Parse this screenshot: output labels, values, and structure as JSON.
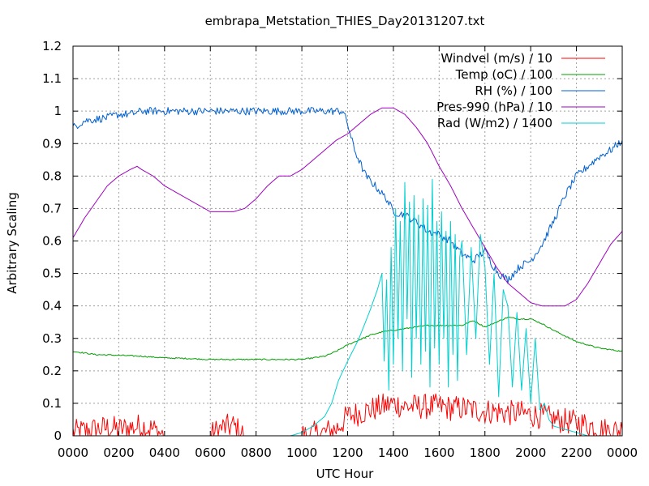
{
  "chart_data": {
    "type": "line",
    "title": "embrapa_Metstation_THIES_Day20131207.txt",
    "xlabel": "UTC Hour",
    "ylabel": "Arbitrary Scaling",
    "xlim": [
      0,
      24
    ],
    "ylim": [
      0,
      1.2
    ],
    "x_tick_values": [
      0,
      2,
      4,
      6,
      8,
      10,
      12,
      14,
      16,
      18,
      20,
      22,
      24
    ],
    "x_tick_labels": [
      "0000",
      "0200",
      "0400",
      "0600",
      "0800",
      "1000",
      "1200",
      "1400",
      "1600",
      "1800",
      "2000",
      "2200",
      "0000"
    ],
    "y_tick_values": [
      0,
      0.1,
      0.2,
      0.3,
      0.4,
      0.5,
      0.6,
      0.7,
      0.8,
      0.9,
      1.0,
      1.1,
      1.2
    ],
    "y_tick_labels": [
      "0",
      "0.1",
      "0.2",
      "0.3",
      "0.4",
      "0.5",
      "0.6",
      "0.7",
      "0.8",
      "0.9",
      "1",
      "1.1",
      "1.2"
    ],
    "grid": true,
    "legend_position": "top-right",
    "series": [
      {
        "name": "Windvel (m/s) / 10",
        "color": "#ff0000",
        "noise": 0.04,
        "x": [
          0,
          0.5,
          1,
          1.5,
          2,
          2.5,
          3,
          3.5,
          4,
          6,
          6.5,
          7,
          7.5,
          10,
          11,
          11.5,
          12,
          12.5,
          13,
          13.5,
          14,
          14.5,
          15,
          15.5,
          16,
          16.5,
          17,
          17.5,
          18,
          18.5,
          19,
          19.5,
          20,
          20.5,
          21,
          21.5,
          22,
          22.5,
          23,
          23.5,
          24
        ],
        "y": [
          0.01,
          0.015,
          0.02,
          0.025,
          0.02,
          0.025,
          0.03,
          0.02,
          0,
          0,
          0.025,
          0.03,
          0,
          0,
          0.01,
          0.02,
          0.06,
          0.07,
          0.08,
          0.09,
          0.1,
          0.09,
          0.09,
          0.09,
          0.09,
          0.085,
          0.085,
          0.08,
          0.075,
          0.075,
          0.07,
          0.07,
          0.065,
          0.06,
          0.05,
          0.045,
          0.04,
          0.035,
          0.02,
          0.015,
          0.02
        ]
      },
      {
        "name": "Temp (oC) / 100",
        "color": "#00a000",
        "noise": 0.002,
        "x": [
          0,
          1,
          2,
          3,
          4,
          5,
          6,
          8,
          10,
          11,
          11.5,
          12,
          12.5,
          13,
          13.5,
          14,
          14.5,
          15,
          15.5,
          16,
          16.5,
          17,
          17.5,
          18,
          18.5,
          19,
          19.5,
          20,
          20.5,
          21,
          22,
          23,
          24
        ],
        "y": [
          0.26,
          0.25,
          0.248,
          0.245,
          0.24,
          0.238,
          0.235,
          0.235,
          0.235,
          0.245,
          0.26,
          0.28,
          0.295,
          0.31,
          0.32,
          0.325,
          0.33,
          0.335,
          0.34,
          0.34,
          0.34,
          0.34,
          0.355,
          0.335,
          0.35,
          0.365,
          0.36,
          0.36,
          0.345,
          0.325,
          0.29,
          0.27,
          0.26
        ]
      },
      {
        "name": "RH (%) / 100",
        "color": "#0060d0",
        "noise": 0.012,
        "x": [
          0,
          0.5,
          1,
          1.5,
          2,
          2.5,
          3,
          4,
          6,
          8,
          10,
          11,
          11.8,
          12,
          12.3,
          12.8,
          13.2,
          13.7,
          14,
          14.5,
          15,
          15.5,
          16,
          16.5,
          17,
          17.5,
          18,
          18.3,
          18.6,
          19,
          19.5,
          20,
          20.5,
          21,
          21.5,
          22,
          22.5,
          23,
          23.5,
          24
        ],
        "y": [
          0.95,
          0.97,
          0.975,
          0.98,
          0.99,
          0.99,
          1.0,
          1.0,
          1.0,
          1.0,
          1.0,
          1.0,
          1.0,
          0.96,
          0.88,
          0.8,
          0.77,
          0.73,
          0.69,
          0.68,
          0.66,
          0.63,
          0.62,
          0.6,
          0.56,
          0.54,
          0.57,
          0.53,
          0.5,
          0.48,
          0.52,
          0.54,
          0.59,
          0.66,
          0.74,
          0.8,
          0.83,
          0.86,
          0.88,
          0.91
        ]
      },
      {
        "name": "Pres-990 (hPa) / 10",
        "color": "#a000c0",
        "noise": 0.0,
        "x": [
          0,
          0.5,
          1,
          1.5,
          2,
          2.5,
          2.8,
          3,
          3.5,
          4,
          4.5,
          5,
          5.5,
          6,
          6.5,
          7,
          7.5,
          8,
          8.5,
          9,
          9.5,
          10,
          10.5,
          11,
          11.5,
          12,
          12.5,
          13,
          13.5,
          14,
          14.5,
          15,
          15.5,
          16,
          16.5,
          17,
          17.5,
          18,
          18.5,
          19,
          19.5,
          20,
          20.5,
          21,
          21.5,
          22,
          22.5,
          23,
          23.5,
          24
        ],
        "y": [
          0.61,
          0.67,
          0.72,
          0.77,
          0.8,
          0.82,
          0.83,
          0.82,
          0.8,
          0.77,
          0.75,
          0.73,
          0.71,
          0.69,
          0.69,
          0.69,
          0.7,
          0.73,
          0.77,
          0.8,
          0.8,
          0.82,
          0.85,
          0.88,
          0.91,
          0.93,
          0.96,
          0.99,
          1.01,
          1.01,
          0.99,
          0.95,
          0.9,
          0.83,
          0.77,
          0.7,
          0.64,
          0.58,
          0.52,
          0.47,
          0.44,
          0.41,
          0.4,
          0.4,
          0.4,
          0.42,
          0.47,
          0.53,
          0.59,
          0.63
        ]
      },
      {
        "name": "Rad (W/m2) / 1400",
        "color": "#00d0d0",
        "noise": 0.0,
        "x": [
          0,
          9.5,
          10,
          10.5,
          11,
          11.3,
          11.6,
          12,
          12.5,
          13,
          13.3,
          13.5,
          13.6,
          13.7,
          13.8,
          13.9,
          14,
          14.1,
          14.2,
          14.3,
          14.4,
          14.5,
          14.6,
          14.7,
          14.8,
          14.9,
          15,
          15.1,
          15.2,
          15.3,
          15.4,
          15.5,
          15.6,
          15.7,
          15.8,
          15.9,
          16,
          16.1,
          16.2,
          16.3,
          16.4,
          16.5,
          16.6,
          16.7,
          16.8,
          16.9,
          17,
          17.2,
          17.4,
          17.6,
          17.8,
          18,
          18.2,
          18.4,
          18.6,
          18.8,
          19,
          19.2,
          19.4,
          19.6,
          19.8,
          20,
          20.2,
          20.4,
          20.6,
          20.8,
          21,
          21.5,
          22,
          22.5,
          23,
          24
        ],
        "y": [
          0,
          0,
          0.01,
          0.03,
          0.06,
          0.1,
          0.17,
          0.23,
          0.3,
          0.39,
          0.45,
          0.5,
          0.23,
          0.48,
          0.14,
          0.58,
          0.22,
          0.7,
          0.3,
          0.66,
          0.2,
          0.78,
          0.36,
          0.72,
          0.18,
          0.74,
          0.3,
          0.68,
          0.22,
          0.73,
          0.26,
          0.71,
          0.15,
          0.79,
          0.27,
          0.66,
          0.22,
          0.69,
          0.3,
          0.63,
          0.15,
          0.66,
          0.25,
          0.62,
          0.17,
          0.55,
          0.6,
          0.25,
          0.58,
          0.3,
          0.62,
          0.52,
          0.22,
          0.5,
          0.12,
          0.45,
          0.4,
          0.15,
          0.38,
          0.14,
          0.33,
          0.1,
          0.3,
          0.08,
          0.1,
          0.05,
          0.03,
          0.02,
          0.01,
          0.0,
          0.0,
          0.0
        ]
      }
    ]
  }
}
